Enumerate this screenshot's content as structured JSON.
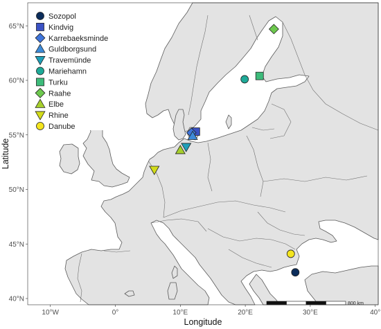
{
  "axes": {
    "x_title": "Longitude",
    "y_title": "Latitude",
    "x_ticks": [
      {
        "value": -10,
        "label": "10°W"
      },
      {
        "value": 0,
        "label": "0°"
      },
      {
        "value": 10,
        "label": "10°E"
      },
      {
        "value": 20,
        "label": "20°E"
      },
      {
        "value": 30,
        "label": "30°E"
      },
      {
        "value": 40,
        "label": "40°"
      }
    ],
    "y_ticks": [
      {
        "value": 40,
        "label": "40°N"
      },
      {
        "value": 45,
        "label": "45°N"
      },
      {
        "value": 50,
        "label": "50°N"
      },
      {
        "value": 55,
        "label": "55°N"
      },
      {
        "value": 60,
        "label": "60°N"
      },
      {
        "value": 65,
        "label": "65°N"
      }
    ],
    "x_range": [
      -15,
      40
    ],
    "y_range": [
      39.3,
      66.6
    ]
  },
  "scale_bar": {
    "label": "800 km"
  },
  "colors": {
    "land": "#e3e3e3",
    "water": "#ffffff",
    "border": "#5a5a5a",
    "grid": "#e6e6e6"
  },
  "sites": [
    {
      "name": "Sozopol",
      "shape": "circle",
      "color": "#0b2d5b",
      "lon": 27.7,
      "lat": 42.4
    },
    {
      "name": "Kindvig",
      "shape": "square",
      "color": "#3b52c4",
      "lon": 12.4,
      "lat": 55.3
    },
    {
      "name": "Karrebaeksminde",
      "shape": "diamond",
      "color": "#3f75db",
      "lon": 11.7,
      "lat": 55.2
    },
    {
      "name": "Guldborgsund",
      "shape": "triangle-up",
      "color": "#3d8bd9",
      "lon": 11.9,
      "lat": 54.9
    },
    {
      "name": "Travemünde",
      "shape": "triangle-down",
      "color": "#1f9fb8",
      "lon": 10.9,
      "lat": 53.9
    },
    {
      "name": "Mariehamn",
      "shape": "circle",
      "color": "#1eaa98",
      "lon": 19.9,
      "lat": 60.1
    },
    {
      "name": "Turku",
      "shape": "square",
      "color": "#3dbb7a",
      "lon": 22.2,
      "lat": 60.4
    },
    {
      "name": "Raahe",
      "shape": "diamond",
      "color": "#6dc84e",
      "lon": 24.4,
      "lat": 64.7
    },
    {
      "name": "Elbe",
      "shape": "triangle-up",
      "color": "#a6cf2c",
      "lon": 10.0,
      "lat": 53.6
    },
    {
      "name": "Rhine",
      "shape": "triangle-down",
      "color": "#d3dc1a",
      "lon": 6.0,
      "lat": 51.8
    },
    {
      "name": "Danube",
      "shape": "circle",
      "color": "#f4e51e",
      "lon": 27.0,
      "lat": 44.1
    }
  ]
}
